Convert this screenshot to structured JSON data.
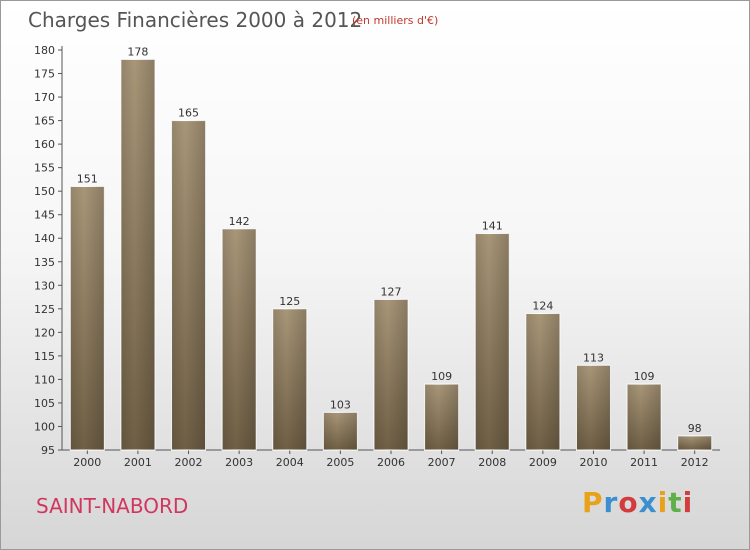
{
  "title": "Charges Financières 2000 à 2012",
  "subtitle": "(en milliers d'€)",
  "commune": "SAINT-NABORD",
  "logo": {
    "letters": [
      "P",
      "r",
      "o",
      "x",
      "i",
      "t",
      "i"
    ],
    "colors": [
      "#e8a21a",
      "#3a8fd1",
      "#d23c3c",
      "#3a8fd1",
      "#e8a21a",
      "#5fb04a",
      "#d23c3c"
    ]
  },
  "chart_data": {
    "type": "bar",
    "title": "Charges Financières 2000 à 2012",
    "subtitle": "(en milliers d'€)",
    "categories": [
      "2000",
      "2001",
      "2002",
      "2003",
      "2004",
      "2005",
      "2006",
      "2007",
      "2008",
      "2009",
      "2010",
      "2011",
      "2012"
    ],
    "values": [
      151,
      178,
      165,
      142,
      125,
      103,
      127,
      109,
      141,
      124,
      113,
      109,
      98
    ],
    "ylim": [
      95,
      180
    ],
    "yticks": [
      95,
      100,
      105,
      110,
      115,
      120,
      125,
      130,
      135,
      140,
      145,
      150,
      155,
      160,
      165,
      170,
      175,
      180
    ],
    "grid": false,
    "bar_color": "#8b7a5e"
  }
}
